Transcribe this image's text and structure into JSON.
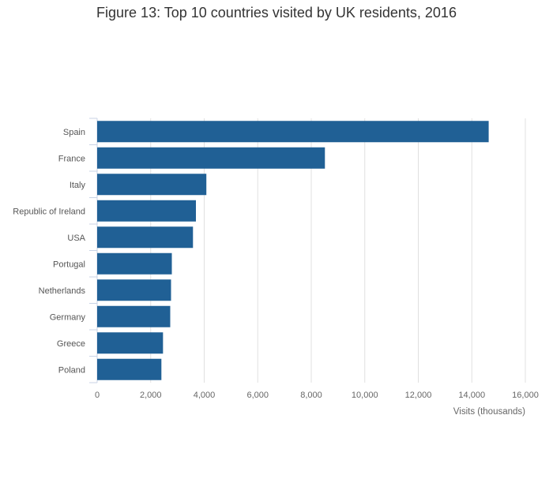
{
  "chart_data": {
    "type": "bar",
    "orientation": "horizontal",
    "title": "Figure 13: Top 10 countries visited by UK residents, 2016",
    "categories": [
      "Spain",
      "France",
      "Italy",
      "Republic of Ireland",
      "USA",
      "Portugal",
      "Netherlands",
      "Germany",
      "Greece",
      "Poland"
    ],
    "values": [
      14630,
      8510,
      4080,
      3690,
      3580,
      2790,
      2760,
      2730,
      2460,
      2400
    ],
    "xlabel": "Visits (thousands)",
    "ylabel": "",
    "xlim": [
      0,
      16000
    ],
    "xticks": [
      0,
      2000,
      4000,
      6000,
      8000,
      10000,
      12000,
      14000,
      16000
    ],
    "xtick_labels": [
      "0",
      "2,000",
      "4,000",
      "6,000",
      "8,000",
      "10,000",
      "12,000",
      "14,000",
      "16,000"
    ],
    "grid": true,
    "bar_color": "#206095"
  }
}
